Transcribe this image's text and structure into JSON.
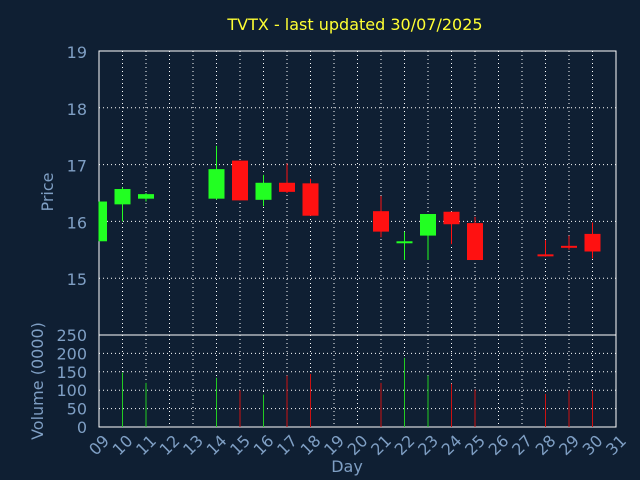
{
  "chart_data": {
    "type": "candlestick",
    "title": "TVTX - last updated 30/07/2025",
    "xlabel": "Day",
    "price_axis": {
      "label": "Price",
      "ylim": [
        14,
        19
      ],
      "ticks": [
        15,
        16,
        17,
        18,
        19
      ]
    },
    "volume_axis": {
      "label": "Volume (0000)",
      "ylim": [
        0,
        250
      ],
      "ticks": [
        0,
        50,
        100,
        150,
        200,
        250
      ]
    },
    "x_ticks": [
      "09",
      "10",
      "11",
      "12",
      "13",
      "14",
      "15",
      "16",
      "17",
      "18",
      "19",
      "20",
      "21",
      "22",
      "23",
      "24",
      "25",
      "26",
      "27",
      "28",
      "29",
      "30",
      "31"
    ],
    "grid": true,
    "colors": {
      "background": "#0f1f33",
      "title": "#ffff33",
      "axis_text": "#7f9fc4",
      "grid": "#ffffff",
      "up": "#22ff22",
      "down": "#ff1111",
      "up_volume": "#22cc22",
      "down_volume": "#cc1111"
    },
    "candles": [
      {
        "day": 9,
        "open": 15.65,
        "high": 16.35,
        "low": 15.65,
        "close": 16.35,
        "volume": 0
      },
      {
        "day": 10,
        "open": 16.3,
        "high": 16.6,
        "low": 16.0,
        "close": 16.57,
        "volume": 148
      },
      {
        "day": 11,
        "open": 16.4,
        "high": 16.5,
        "low": 16.35,
        "close": 16.48,
        "volume": 120
      },
      {
        "day": 14,
        "open": 16.4,
        "high": 17.33,
        "low": 16.38,
        "close": 16.92,
        "volume": 134
      },
      {
        "day": 15,
        "open": 17.07,
        "high": 17.07,
        "low": 16.37,
        "close": 16.37,
        "volume": 100
      },
      {
        "day": 16,
        "open": 16.38,
        "high": 16.82,
        "low": 16.27,
        "close": 16.68,
        "volume": 88
      },
      {
        "day": 17,
        "open": 16.68,
        "high": 17.02,
        "low": 16.5,
        "close": 16.52,
        "volume": 140
      },
      {
        "day": 18,
        "open": 16.67,
        "high": 16.75,
        "low": 16.1,
        "close": 16.1,
        "volume": 144
      },
      {
        "day": 21,
        "open": 16.18,
        "high": 16.45,
        "low": 15.72,
        "close": 15.82,
        "volume": 120
      },
      {
        "day": 22,
        "open": 15.65,
        "high": 15.82,
        "low": 15.32,
        "close": 15.65,
        "volume": 188
      },
      {
        "day": 23,
        "open": 15.75,
        "high": 16.13,
        "low": 15.32,
        "close": 16.13,
        "volume": 140
      },
      {
        "day": 24,
        "open": 16.17,
        "high": 16.17,
        "low": 15.6,
        "close": 15.95,
        "volume": 118
      },
      {
        "day": 25,
        "open": 15.97,
        "high": 16.08,
        "low": 15.32,
        "close": 15.32,
        "volume": 102
      },
      {
        "day": 28,
        "open": 15.42,
        "high": 15.67,
        "low": 15.38,
        "close": 15.4,
        "volume": 90
      },
      {
        "day": 29,
        "open": 15.57,
        "high": 15.75,
        "low": 15.5,
        "close": 15.55,
        "volume": 100
      },
      {
        "day": 30,
        "open": 15.78,
        "high": 15.98,
        "low": 15.35,
        "close": 15.47,
        "volume": 100
      }
    ]
  }
}
